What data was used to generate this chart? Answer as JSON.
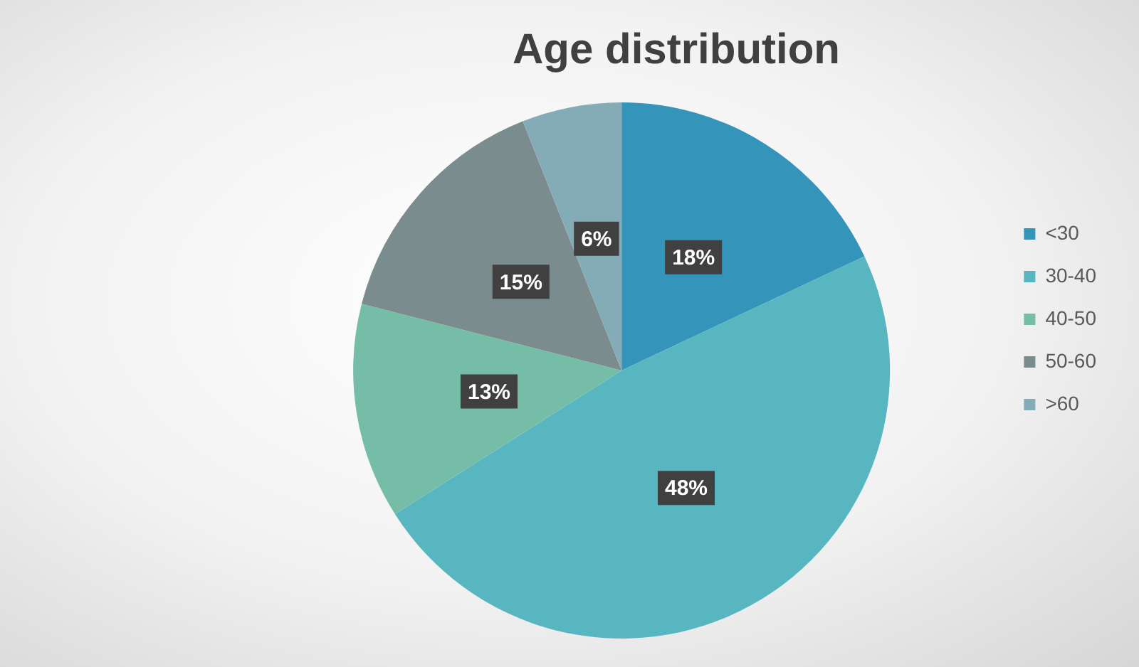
{
  "chart_data": {
    "type": "pie",
    "title": "Age distribution",
    "categories": [
      "<30",
      "30-40",
      "40-50",
      "50-60",
      ">60"
    ],
    "values": [
      18,
      48,
      13,
      15,
      6
    ],
    "colors": [
      "#3494ba",
      "#58b6c0",
      "#75bda7",
      "#7a8c8e",
      "#84acb6"
    ],
    "value_labels": [
      "18%",
      "48%",
      "13%",
      "15%",
      "6%"
    ],
    "legend": "right"
  }
}
